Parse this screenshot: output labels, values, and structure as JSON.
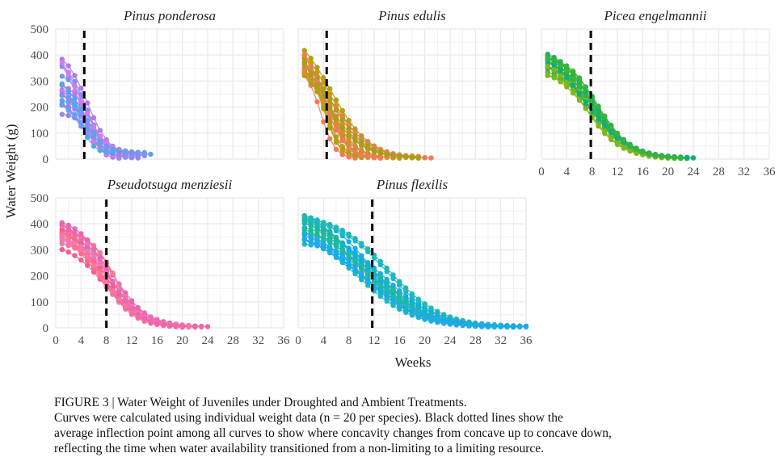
{
  "axis_labels": {
    "y": "Water Weight (g)",
    "x": "Weeks"
  },
  "caption": {
    "title": "FIGURE 3 | Water Weight of Juveniles under Droughted and Ambient Treatments.",
    "lines": [
      "Curves were calculated using individual weight data (n = 20 per species). Black dotted lines show the",
      "average inflection point among all curves to show where concavity changes from concave up to concave down,",
      "reflecting the time when water availability transitioned from a non-limiting to a limiting resource."
    ]
  },
  "colors": {
    "Pinus ponderosa": [
      "#8B8BEE",
      "#B07AE8",
      "#4FA8E8",
      "#D27CEA",
      "#6A9BEF"
    ],
    "Pinus edulis": [
      "#C99A0E",
      "#E0853E",
      "#B29F12",
      "#F07A5E",
      "#A89E1A"
    ],
    "Picea engelmannii": [
      "#4FB82E",
      "#22B05A",
      "#7FB51F",
      "#13AE78",
      "#36B339"
    ],
    "Pseudotsuga menziesii": [
      "#F25C8E",
      "#F8698A",
      "#E77BC2",
      "#F6789A",
      "#EC66B0"
    ],
    "Pinus flexilis": [
      "#1AB5D0",
      "#1DBAB5",
      "#12AEE5",
      "#1FB994",
      "#22A8EC"
    ],
    "dashed_line": "#000000",
    "grid": "#ebebeb"
  },
  "chart_data": [
    {
      "type": "line",
      "title": "Pinus ponderosa",
      "xlabel": "Weeks",
      "ylabel": "Water Weight (g)",
      "xlim": [
        0,
        36
      ],
      "ylim": [
        0,
        500
      ],
      "x_ticks": [
        0,
        4,
        8,
        12,
        16,
        20,
        24,
        28,
        32,
        36
      ],
      "y_ticks": [
        0,
        100,
        200,
        300,
        400,
        500
      ],
      "inflection_week": 4.5,
      "n_curves": 20,
      "start_range": [
        170,
        390
      ],
      "end_range": [
        0,
        60
      ],
      "end_week_range": [
        9,
        16
      ],
      "grid": true
    },
    {
      "type": "line",
      "title": "Pinus edulis",
      "xlabel": "Weeks",
      "ylabel": "Water Weight (g)",
      "xlim": [
        0,
        36
      ],
      "ylim": [
        0,
        500
      ],
      "x_ticks": [
        0,
        4,
        8,
        12,
        16,
        20,
        24,
        28,
        32,
        36
      ],
      "y_ticks": [
        0,
        100,
        200,
        300,
        400,
        500
      ],
      "inflection_week": 4.5,
      "n_curves": 20,
      "start_range": [
        320,
        420
      ],
      "end_range": [
        0,
        20
      ],
      "end_week_range": [
        9,
        22
      ],
      "grid": true
    },
    {
      "type": "line",
      "title": "Picea engelmannii",
      "xlabel": "Weeks",
      "ylabel": "Water Weight (g)",
      "xlim": [
        0,
        36
      ],
      "ylim": [
        0,
        500
      ],
      "x_ticks": [
        0,
        4,
        8,
        12,
        16,
        20,
        24,
        28,
        32,
        36
      ],
      "y_ticks": [
        0,
        100,
        200,
        300,
        400,
        500
      ],
      "inflection_week": 7.8,
      "n_curves": 20,
      "start_range": [
        320,
        410
      ],
      "end_range": [
        0,
        10
      ],
      "end_week_range": [
        20,
        24
      ],
      "grid": true
    },
    {
      "type": "line",
      "title": "Pseudotsuga menziesii",
      "xlabel": "Weeks",
      "ylabel": "Water Weight (g)",
      "xlim": [
        0,
        36
      ],
      "ylim": [
        0,
        500
      ],
      "x_ticks": [
        0,
        4,
        8,
        12,
        16,
        20,
        24,
        28,
        32,
        36
      ],
      "y_ticks": [
        0,
        100,
        200,
        300,
        400,
        500
      ],
      "inflection_week": 8,
      "n_curves": 20,
      "start_range": [
        300,
        405
      ],
      "end_range": [
        0,
        10
      ],
      "end_week_range": [
        18,
        24
      ],
      "grid": true
    },
    {
      "type": "line",
      "title": "Pinus flexilis",
      "xlabel": "Weeks",
      "ylabel": "Water Weight (g)",
      "xlim": [
        0,
        36
      ],
      "ylim": [
        0,
        500
      ],
      "x_ticks": [
        0,
        4,
        8,
        12,
        16,
        20,
        24,
        28,
        32,
        36
      ],
      "y_ticks": [
        0,
        100,
        200,
        300,
        400,
        500
      ],
      "inflection_week": 11.7,
      "n_curves": 20,
      "start_range": [
        320,
        455
      ],
      "end_range": [
        0,
        10
      ],
      "end_week_range": [
        30,
        36
      ],
      "grid": true
    }
  ]
}
